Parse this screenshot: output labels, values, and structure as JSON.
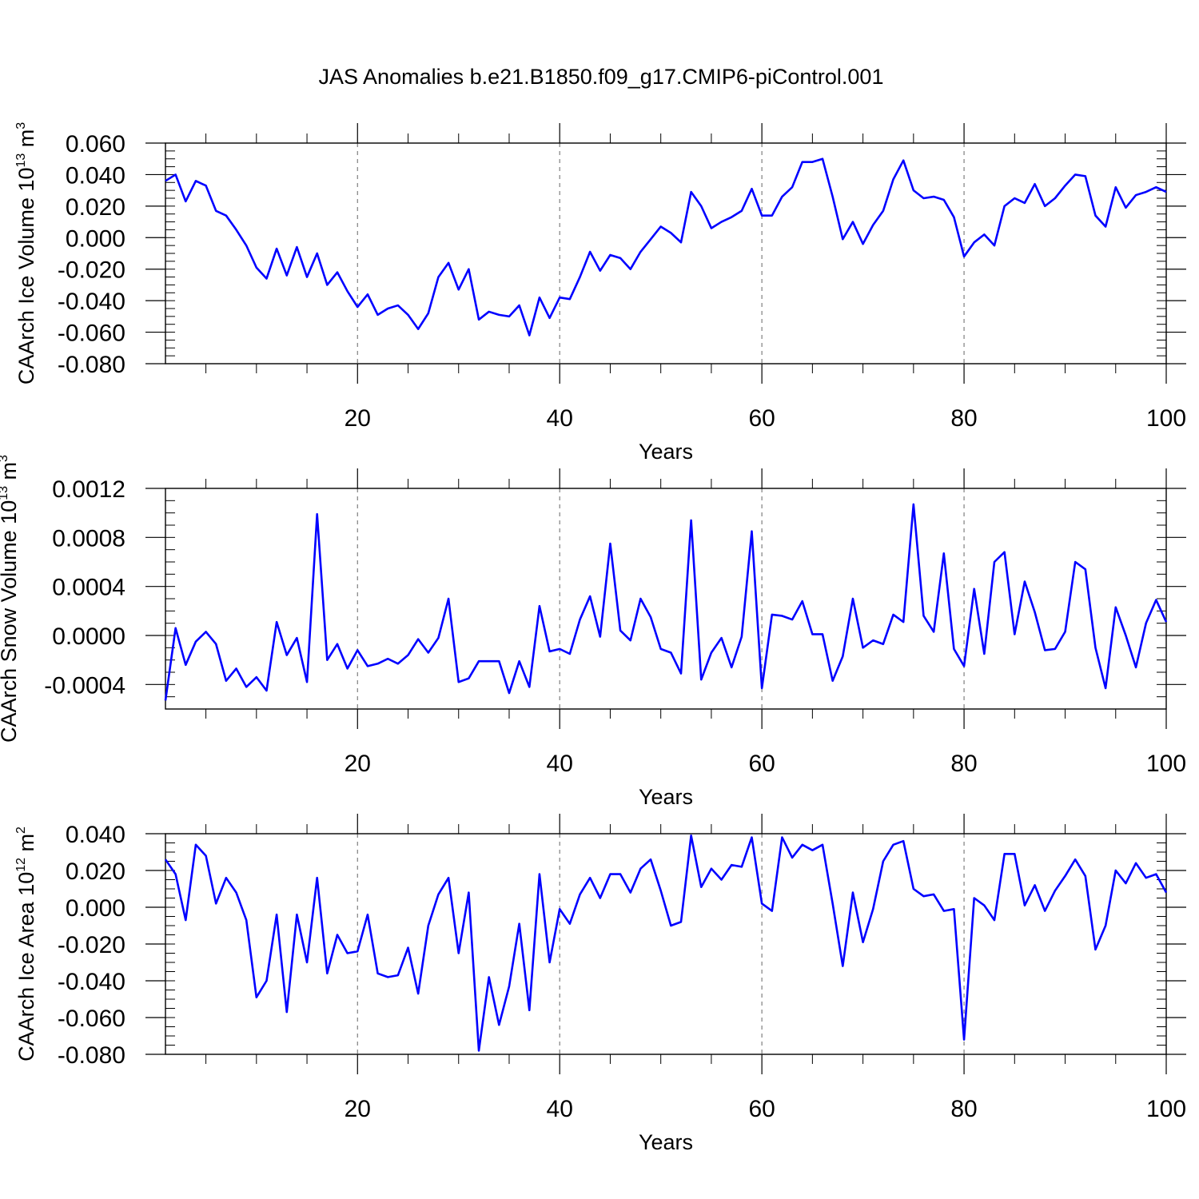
{
  "colors": {
    "series": "#0000ff",
    "axis": "#000000",
    "grid": "#7f7f7f"
  },
  "chart_data": [
    {
      "type": "line",
      "title": "JAS Anomalies b.e21.B1850.f09_g17.CMIP6-piControl.001",
      "ylabel_main": "CAArch Ice Volume 10",
      "ylabel_exp": "13",
      "ylabel_unit": " m",
      "ylabel_unit_exp": "3",
      "xlabel": "Years",
      "xlim": [
        1,
        100
      ],
      "ylim": [
        -0.08,
        0.06
      ],
      "yticks": [
        -0.08,
        -0.06,
        -0.04,
        -0.02,
        0.0,
        0.02,
        0.04,
        0.06
      ],
      "ytick_labels": [
        "-0.080",
        "-0.060",
        "-0.040",
        "-0.020",
        "0.000",
        "0.020",
        "0.040",
        "0.060"
      ],
      "xticks": [
        20,
        40,
        60,
        80,
        100
      ],
      "xtick_labels": [
        "20",
        "40",
        "60",
        "80",
        "100"
      ],
      "grid": "vertical dashed at 20,40,60,80",
      "x_start": 1,
      "values": [
        0.036,
        0.04,
        0.023,
        0.036,
        0.033,
        0.017,
        0.014,
        0.005,
        -0.005,
        -0.019,
        -0.026,
        -0.007,
        -0.024,
        -0.006,
        -0.025,
        -0.01,
        -0.03,
        -0.022,
        -0.034,
        -0.044,
        -0.036,
        -0.049,
        -0.045,
        -0.043,
        -0.049,
        -0.058,
        -0.048,
        -0.025,
        -0.016,
        -0.033,
        -0.02,
        -0.052,
        -0.047,
        -0.049,
        -0.05,
        -0.043,
        -0.062,
        -0.038,
        -0.051,
        -0.038,
        -0.039,
        -0.025,
        -0.009,
        -0.021,
        -0.011,
        -0.013,
        -0.02,
        -0.009,
        -0.001,
        0.007,
        0.003,
        -0.003,
        0.029,
        0.02,
        0.006,
        0.01,
        0.013,
        0.017,
        0.031,
        0.014,
        0.014,
        0.026,
        0.032,
        0.048,
        0.048,
        0.05,
        0.026,
        -0.001,
        0.01,
        -0.004,
        0.008,
        0.017,
        0.037,
        0.049,
        0.03,
        0.025,
        0.026,
        0.024,
        0.013,
        -0.012,
        -0.003,
        0.002,
        -0.005,
        0.02,
        0.025,
        0.022,
        0.034,
        0.02,
        0.025,
        0.033,
        0.04,
        0.039,
        0.014,
        0.007,
        0.032,
        0.019,
        0.027,
        0.029,
        0.032,
        0.029
      ]
    },
    {
      "type": "line",
      "ylabel_main": "CAArch Snow Volume 10",
      "ylabel_exp": "13",
      "ylabel_unit": " m",
      "ylabel_unit_exp": "3",
      "xlabel": "Years",
      "xlim": [
        1,
        100
      ],
      "ylim": [
        -0.0006,
        0.0012
      ],
      "yticks": [
        -0.0004,
        0.0,
        0.0004,
        0.0008,
        0.0012
      ],
      "ytick_labels": [
        "-0.0004",
        "0.0000",
        "0.0004",
        "0.0008",
        "0.0012"
      ],
      "xticks": [
        20,
        40,
        60,
        80,
        100
      ],
      "xtick_labels": [
        "20",
        "40",
        "60",
        "80",
        "100"
      ],
      "grid": "vertical dashed at 20,40,60,80",
      "x_start": 1,
      "values": [
        -0.00053,
        6e-05,
        -0.00024,
        -5e-05,
        3e-05,
        -7e-05,
        -0.00037,
        -0.00027,
        -0.00042,
        -0.00034,
        -0.00045,
        0.00011,
        -0.00016,
        -2e-05,
        -0.00038,
        0.00099,
        -0.0002,
        -7e-05,
        -0.00027,
        -0.00012,
        -0.00025,
        -0.00023,
        -0.00019,
        -0.00023,
        -0.00016,
        -3e-05,
        -0.00014,
        -2e-05,
        0.0003,
        -0.00038,
        -0.00035,
        -0.00021,
        -0.00021,
        -0.00021,
        -0.00047,
        -0.00021,
        -0.00042,
        0.00024,
        -0.00013,
        -0.00011,
        -0.00015,
        0.00013,
        0.00032,
        -1e-05,
        0.00075,
        4e-05,
        -4e-05,
        0.0003,
        0.00015,
        -0.00011,
        -0.00014,
        -0.00031,
        0.00094,
        -0.00036,
        -0.00014,
        -2e-05,
        -0.00026,
        -1e-05,
        0.00085,
        -0.00043,
        0.00017,
        0.00016,
        0.00013,
        0.00028,
        1e-05,
        1e-05,
        -0.00037,
        -0.00017,
        0.0003,
        -0.0001,
        -4e-05,
        -7e-05,
        0.00017,
        0.00011,
        0.00107,
        0.00016,
        3e-05,
        0.00067,
        -0.00011,
        -0.00025,
        0.00038,
        -0.00015,
        0.0006,
        0.00068,
        1e-05,
        0.00044,
        0.00019,
        -0.00012,
        -0.00011,
        3e-05,
        0.0006,
        0.00054,
        -0.0001,
        -0.00043,
        0.00023,
        0.0,
        -0.00026,
        0.0001,
        0.00029,
        0.00011
      ]
    },
    {
      "type": "line",
      "ylabel_main": "CAArch Ice Area 10",
      "ylabel_exp": "12",
      "ylabel_unit": " m",
      "ylabel_unit_exp": "2",
      "xlabel": "Years",
      "xlim": [
        1,
        100
      ],
      "ylim": [
        -0.08,
        0.04
      ],
      "yticks": [
        -0.08,
        -0.06,
        -0.04,
        -0.02,
        0.0,
        0.02,
        0.04
      ],
      "ytick_labels": [
        "-0.080",
        "-0.060",
        "-0.040",
        "-0.020",
        "0.000",
        "0.020",
        "0.040"
      ],
      "xticks": [
        20,
        40,
        60,
        80,
        100
      ],
      "xtick_labels": [
        "20",
        "40",
        "60",
        "80",
        "100"
      ],
      "grid": "vertical dashed at 20,40,60,80",
      "x_start": 1,
      "values": [
        0.026,
        0.018,
        -0.007,
        0.034,
        0.028,
        0.002,
        0.016,
        0.008,
        -0.007,
        -0.049,
        -0.04,
        -0.004,
        -0.057,
        -0.004,
        -0.03,
        0.016,
        -0.036,
        -0.015,
        -0.025,
        -0.024,
        -0.004,
        -0.036,
        -0.038,
        -0.037,
        -0.022,
        -0.047,
        -0.01,
        0.007,
        0.016,
        -0.025,
        0.008,
        -0.078,
        -0.038,
        -0.064,
        -0.043,
        -0.009,
        -0.056,
        0.018,
        -0.03,
        -0.001,
        -0.009,
        0.007,
        0.016,
        0.005,
        0.018,
        0.018,
        0.008,
        0.021,
        0.026,
        0.009,
        -0.01,
        -0.008,
        0.039,
        0.011,
        0.021,
        0.015,
        0.023,
        0.022,
        0.038,
        0.002,
        -0.002,
        0.038,
        0.027,
        0.034,
        0.031,
        0.034,
        0.002,
        -0.032,
        0.008,
        -0.019,
        -0.001,
        0.025,
        0.034,
        0.036,
        0.01,
        0.006,
        0.007,
        -0.002,
        -0.001,
        -0.072,
        0.005,
        0.001,
        -0.007,
        0.029,
        0.029,
        0.001,
        0.012,
        -0.002,
        0.009,
        0.017,
        0.026,
        0.017,
        -0.023,
        -0.01,
        0.02,
        0.013,
        0.024,
        0.016,
        0.018,
        0.008
      ]
    }
  ]
}
